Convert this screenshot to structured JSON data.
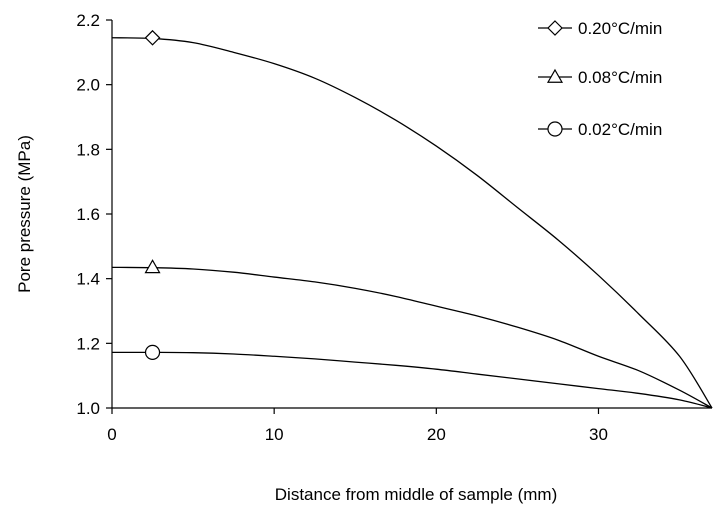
{
  "chart_data": {
    "type": "line",
    "xlabel": "Distance from middle of sample (mm)",
    "ylabel": "Pore pressure (MPa)",
    "xlim": [
      0,
      37
    ],
    "ylim": [
      1.0,
      2.2
    ],
    "xticks": [
      0,
      10,
      20,
      30
    ],
    "yticks": [
      1.0,
      1.2,
      1.4,
      1.6,
      1.8,
      2.0,
      2.2
    ],
    "x_tick_labels": [
      "0",
      "10",
      "20",
      "30"
    ],
    "y_tick_labels": [
      "1.0",
      "1.2",
      "1.4",
      "1.6",
      "1.8",
      "2.0",
      "2.2"
    ],
    "grid": false,
    "legend_position": "top-right",
    "series": [
      {
        "name": "0.20°C/min",
        "marker": "diamond",
        "marker_at": [
          2.5,
          2.145
        ],
        "x": [
          0,
          2.5,
          5,
          7.5,
          10,
          12.5,
          15,
          17.5,
          20,
          22.5,
          25,
          27.5,
          30,
          32.5,
          35,
          37
        ],
        "y": [
          2.145,
          2.143,
          2.13,
          2.1,
          2.065,
          2.02,
          1.96,
          1.89,
          1.81,
          1.72,
          1.62,
          1.52,
          1.41,
          1.29,
          1.16,
          1.0
        ]
      },
      {
        "name": "0.08°C/min",
        "marker": "triangle",
        "marker_at": [
          2.5,
          1.435
        ],
        "x": [
          0,
          2.5,
          5,
          7.5,
          10,
          12.5,
          15,
          17.5,
          20,
          22.5,
          25,
          27.5,
          30,
          32.5,
          35,
          37
        ],
        "y": [
          1.435,
          1.434,
          1.43,
          1.42,
          1.405,
          1.39,
          1.37,
          1.345,
          1.315,
          1.285,
          1.25,
          1.21,
          1.16,
          1.115,
          1.055,
          1.0
        ]
      },
      {
        "name": "0.02°C/min",
        "marker": "circle",
        "marker_at": [
          2.5,
          1.172
        ],
        "x": [
          0,
          2.5,
          5,
          7.5,
          10,
          12.5,
          15,
          17.5,
          20,
          22.5,
          25,
          27.5,
          30,
          32.5,
          35,
          37
        ],
        "y": [
          1.172,
          1.172,
          1.171,
          1.167,
          1.16,
          1.152,
          1.142,
          1.132,
          1.12,
          1.105,
          1.09,
          1.075,
          1.06,
          1.045,
          1.025,
          1.0
        ]
      }
    ]
  }
}
